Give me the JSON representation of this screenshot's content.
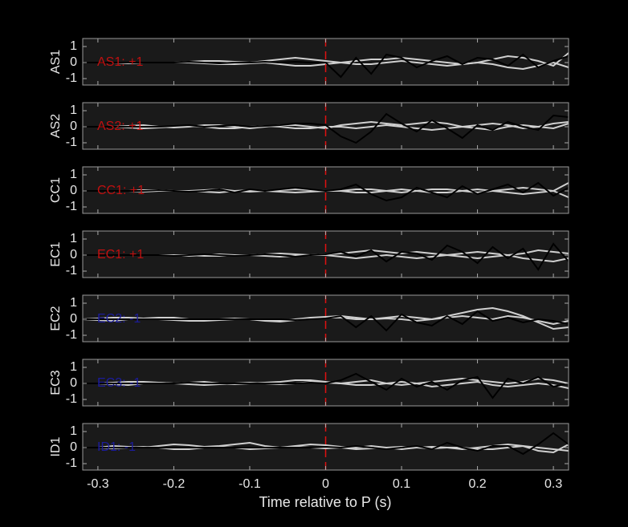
{
  "chart_data": {
    "type": "line",
    "xlabel": "Time relative to P (s)",
    "xlim": [
      -0.32,
      0.32
    ],
    "xticks": [
      -0.3,
      -0.2,
      -0.1,
      0,
      0.1,
      0.2,
      0.3
    ],
    "vline": 0,
    "vline_color": "#e01010",
    "x": [
      -0.32,
      -0.3,
      -0.28,
      -0.26,
      -0.24,
      -0.22,
      -0.2,
      -0.18,
      -0.16,
      -0.14,
      -0.12,
      -0.1,
      -0.08,
      -0.06,
      -0.04,
      -0.02,
      0,
      0.02,
      0.04,
      0.06,
      0.08,
      0.1,
      0.12,
      0.14,
      0.16,
      0.18,
      0.2,
      0.22,
      0.24,
      0.26,
      0.28,
      0.3,
      0.32
    ],
    "panels": [
      {
        "ylabel": "AS1",
        "annotation": "AS1: +1",
        "annotation_color": "#c01010",
        "ylim": [
          -1.4,
          1.5
        ],
        "yticks": [
          -1,
          0,
          1
        ],
        "series": [
          {
            "color": "#d0d0d0",
            "values": [
              0,
              0,
              0,
              -0.05,
              0,
              0,
              0,
              0.05,
              0.1,
              0.1,
              0.05,
              0,
              0.1,
              0.2,
              0.3,
              0.2,
              0.1,
              0,
              0.1,
              0.2,
              0.2,
              0.3,
              0.2,
              0.1,
              0,
              -0.1,
              0,
              0.2,
              0.4,
              0.3,
              0.1,
              -0.2,
              0.6
            ]
          },
          {
            "color": "#d0d0d0",
            "values": [
              0,
              0,
              0,
              0,
              0,
              0,
              0,
              0,
              -0.05,
              -0.1,
              -0.1,
              -0.05,
              0,
              -0.1,
              -0.2,
              -0.2,
              -0.1,
              0,
              -0.1,
              -0.1,
              0,
              0.1,
              0,
              -0.1,
              -0.2,
              -0.1,
              0,
              -0.1,
              -0.3,
              -0.4,
              -0.2,
              0,
              -0.3
            ]
          },
          {
            "color": "#000000",
            "values": [
              0,
              0,
              0,
              0,
              0,
              0,
              0,
              0.05,
              0,
              -0.05,
              0,
              0,
              0.05,
              0,
              0.05,
              0,
              0,
              -0.9,
              0.3,
              -0.7,
              0.5,
              0.3,
              -0.3,
              0.1,
              0.4,
              -0.1,
              0.3,
              0.2,
              -0.2,
              0.5,
              -0.3,
              0.1,
              0.4
            ]
          }
        ]
      },
      {
        "ylabel": "AS2",
        "annotation": "AS2: +1",
        "annotation_color": "#c01010",
        "ylim": [
          -1.4,
          1.5
        ],
        "yticks": [
          -1,
          0,
          1
        ],
        "series": [
          {
            "color": "#d0d0d0",
            "values": [
              0,
              0,
              0,
              0.05,
              0.1,
              0,
              -0.05,
              0,
              0.1,
              0.1,
              0,
              -0.1,
              0,
              0.1,
              0.1,
              0,
              -0.1,
              0.1,
              0.2,
              0.3,
              0.2,
              0.1,
              0.2,
              0.3,
              0.2,
              0,
              0.1,
              0.2,
              0.1,
              -0.1,
              0,
              0.2,
              0.3
            ]
          },
          {
            "color": "#d0d0d0",
            "values": [
              0,
              0,
              0,
              -0.05,
              -0.1,
              -0.05,
              0,
              0.05,
              0,
              -0.1,
              -0.1,
              0,
              0.05,
              0,
              -0.1,
              -0.1,
              0,
              0,
              -0.1,
              0,
              0.1,
              0,
              -0.1,
              -0.2,
              -0.1,
              0,
              -0.1,
              -0.2,
              0,
              0.1,
              0,
              -0.1,
              0.2
            ]
          },
          {
            "color": "#000000",
            "values": [
              0,
              0,
              0,
              0,
              0,
              0,
              0.05,
              0.1,
              0,
              0.05,
              0.1,
              0,
              0.05,
              0.1,
              0.2,
              0.2,
              0.1,
              -0.6,
              -1.0,
              -0.3,
              0.8,
              0.2,
              -0.3,
              0.4,
              -0.1,
              -0.7,
              0.1,
              -0.2,
              0.3,
              0,
              -0.2,
              0.7,
              0.6
            ]
          }
        ]
      },
      {
        "ylabel": "CC1",
        "annotation": "CC1: +1",
        "annotation_color": "#c01010",
        "ylim": [
          -1.4,
          1.5
        ],
        "yticks": [
          -1,
          0,
          1
        ],
        "series": [
          {
            "color": "#d0d0d0",
            "values": [
              0,
              0,
              0,
              0,
              0.05,
              0.05,
              0,
              0,
              0.05,
              0.1,
              0,
              -0.05,
              0,
              0.05,
              0.1,
              0.05,
              0,
              0,
              0.1,
              0.1,
              0,
              -0.1,
              0,
              0.1,
              0.1,
              0,
              -0.1,
              0,
              0.1,
              0.2,
              0.1,
              0,
              0.5
            ]
          },
          {
            "color": "#d0d0d0",
            "values": [
              0,
              0,
              0,
              0,
              -0.05,
              0,
              0,
              0,
              -0.05,
              -0.1,
              0,
              0.05,
              0,
              -0.05,
              -0.1,
              -0.05,
              0,
              0,
              -0.1,
              -0.1,
              0,
              0.1,
              0,
              -0.1,
              -0.1,
              0,
              0.1,
              0,
              -0.1,
              -0.2,
              -0.1,
              0,
              -0.4
            ]
          },
          {
            "color": "#000000",
            "values": [
              0,
              0,
              0,
              0,
              0,
              0.05,
              0,
              -0.05,
              0,
              0.1,
              -0.1,
              0.1,
              0,
              0.1,
              0.2,
              0.1,
              0,
              0.1,
              0.4,
              -0.2,
              -0.6,
              -0.4,
              0.2,
              -0.1,
              -0.4,
              0.3,
              -0.2,
              0.1,
              0.4,
              -0.1,
              0.5,
              -0.3,
              0.2
            ]
          }
        ]
      },
      {
        "ylabel": "EC1",
        "annotation": "EC1: +1",
        "annotation_color": "#c01010",
        "ylim": [
          -1.4,
          1.5
        ],
        "yticks": [
          -1,
          0,
          1
        ],
        "series": [
          {
            "color": "#d0d0d0",
            "values": [
              0,
              0,
              0,
              0,
              0,
              0,
              0,
              -0.05,
              0,
              0.05,
              0,
              0,
              0.05,
              0.1,
              0.05,
              0,
              0.05,
              0.1,
              0.2,
              0.3,
              0.2,
              0.1,
              0.2,
              0.1,
              0,
              0.1,
              0.2,
              0.1,
              0,
              0.1,
              0.3,
              0.2,
              0.1
            ]
          },
          {
            "color": "#d0d0d0",
            "values": [
              0,
              0,
              0,
              0,
              0,
              0,
              0,
              0,
              -0.05,
              -0.05,
              0,
              0,
              -0.05,
              -0.1,
              -0.05,
              0,
              0,
              -0.1,
              -0.2,
              -0.1,
              0,
              -0.1,
              -0.2,
              -0.1,
              0,
              -0.1,
              -0.2,
              -0.1,
              0,
              -0.2,
              -0.3,
              -0.4,
              -0.2
            ]
          },
          {
            "color": "#000000",
            "values": [
              0,
              0,
              0,
              0,
              0,
              0,
              -0.05,
              0,
              0.05,
              0,
              -0.05,
              0,
              0.05,
              0,
              -0.1,
              0,
              0.05,
              0.2,
              -0.1,
              0.3,
              -0.4,
              0.2,
              0.1,
              -0.3,
              0.6,
              0.2,
              -0.5,
              0.5,
              -0.2,
              0.4,
              -0.9,
              0.7,
              -0.4
            ]
          }
        ]
      },
      {
        "ylabel": "EC2",
        "annotation": "EC2: -1",
        "annotation_color": "#1c1c9c",
        "ylim": [
          -1.4,
          1.5
        ],
        "yticks": [
          -1,
          0,
          1
        ],
        "series": [
          {
            "color": "#d0d0d0",
            "values": [
              0,
              0.05,
              0.1,
              0.1,
              0.05,
              0,
              -0.05,
              -0.1,
              -0.1,
              -0.05,
              0,
              0,
              -0.05,
              -0.1,
              0,
              0.1,
              0.15,
              0.2,
              0.1,
              0,
              0.1,
              0.2,
              0.1,
              0,
              0.2,
              0.4,
              0.6,
              0.7,
              0.5,
              0.2,
              -0.2,
              -0.6,
              -0.5
            ]
          },
          {
            "color": "#d0d0d0",
            "values": [
              0,
              -0.05,
              -0.1,
              0,
              0.05,
              0.1,
              0.1,
              0,
              -0.05,
              0,
              0.05,
              0,
              -0.1,
              -0.15,
              -0.05,
              0.05,
              0.1,
              0.1,
              0,
              0,
              0.05,
              0,
              -0.1,
              0,
              0.1,
              0.2,
              0.1,
              0,
              0.2,
              0.1,
              -0.1,
              -0.3,
              -0.1
            ]
          },
          {
            "color": "#000000",
            "values": [
              0,
              0,
              0,
              0,
              0,
              0,
              0,
              0,
              0,
              0,
              0,
              0,
              0,
              0,
              -0.05,
              0,
              0.05,
              0.2,
              -0.5,
              0.2,
              -0.7,
              0.3,
              -0.2,
              -0.4,
              0.2,
              -0.3,
              0.5,
              -0.1,
              0.1,
              -0.2,
              0,
              -0.1,
              -0.3
            ]
          }
        ]
      },
      {
        "ylabel": "EC3",
        "annotation": "EC3: -1",
        "annotation_color": "#1c1c9c",
        "ylim": [
          -1.4,
          1.5
        ],
        "yticks": [
          -1,
          0,
          1
        ],
        "series": [
          {
            "color": "#d0d0d0",
            "values": [
              0,
              0,
              0.05,
              0.1,
              0.1,
              0.05,
              0,
              0.05,
              0.1,
              0,
              -0.05,
              0,
              0.05,
              0.1,
              0.2,
              0.2,
              0.1,
              0,
              0.1,
              0.2,
              0,
              -0.1,
              0,
              0.1,
              0.2,
              0.3,
              0.2,
              0.1,
              0,
              0.1,
              0.3,
              0.2,
              0
            ]
          },
          {
            "color": "#d0d0d0",
            "values": [
              0,
              0,
              -0.05,
              -0.1,
              0,
              0.05,
              0,
              -0.05,
              -0.1,
              -0.05,
              0,
              0.05,
              0,
              -0.05,
              0,
              0.1,
              0.05,
              0,
              -0.1,
              -0.1,
              0,
              0.1,
              0,
              -0.2,
              -0.1,
              0,
              0.1,
              -0.1,
              -0.2,
              -0.1,
              0,
              -0.1,
              -0.3
            ]
          },
          {
            "color": "#000000",
            "values": [
              0,
              0,
              0,
              0,
              0,
              0,
              0,
              0.05,
              0,
              0,
              0,
              0,
              0,
              0,
              0,
              0.05,
              0,
              0.2,
              0.6,
              0.1,
              -0.4,
              0.3,
              -0.2,
              0.1,
              -0.4,
              0.2,
              0.4,
              -0.9,
              0.3,
              0,
              0.4,
              -0.2,
              0
            ]
          }
        ]
      },
      {
        "ylabel": "ID1",
        "annotation": "ID1: -1",
        "annotation_color": "#1c1c9c",
        "ylim": [
          -1.4,
          1.5
        ],
        "yticks": [
          -1,
          0,
          1
        ],
        "series": [
          {
            "color": "#d0d0d0",
            "values": [
              0,
              0,
              0.1,
              0.05,
              0,
              0.1,
              0.2,
              0.15,
              0.05,
              0.1,
              0.2,
              0.3,
              0.1,
              0,
              0.1,
              0.2,
              0.15,
              0.05,
              0,
              0.1,
              0,
              -0.1,
              0,
              0.05,
              0,
              -0.1,
              0,
              0.1,
              0.2,
              0.1,
              -0.2,
              -0.3,
              0.2
            ]
          },
          {
            "color": "#d0d0d0",
            "values": [
              0,
              0,
              -0.05,
              0,
              0.05,
              0,
              -0.1,
              -0.1,
              0,
              0.05,
              0,
              -0.1,
              -0.05,
              0,
              0.05,
              0,
              -0.05,
              0,
              -0.1,
              -0.05,
              0,
              0.05,
              0,
              -0.05,
              0,
              0,
              -0.1,
              -0.1,
              0,
              0.1,
              0,
              -0.1,
              -0.2
            ]
          },
          {
            "color": "#000000",
            "values": [
              0,
              0,
              0,
              0,
              0,
              0,
              0,
              0,
              0,
              0,
              0,
              0,
              0,
              0,
              0,
              0,
              0.05,
              0,
              0.1,
              0,
              -0.1,
              0,
              0.1,
              -0.1,
              0.3,
              0,
              -0.2,
              0.1,
              0.1,
              -0.4,
              0.2,
              0.9,
              0.2
            ]
          }
        ]
      }
    ]
  }
}
